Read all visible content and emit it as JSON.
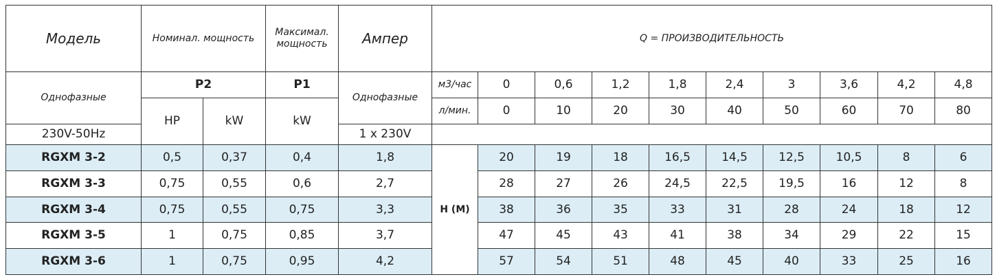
{
  "header": {
    "model": "Модель",
    "nominal_power": "Номинал. мощность",
    "max_power": "Максимал. мощность",
    "ampere": "Ампер",
    "q_title": "Q = ПРОИЗВОДИТЕЛЬНОСТЬ",
    "phase": "Однофазные",
    "p2": "P2",
    "p1": "P1",
    "ampere_phase": "Однофазные",
    "flow_unit_m3": "м3/час",
    "flow_unit_l": "л/мин.",
    "hp": "HP",
    "kw_p2": "kW",
    "kw_p1": "kW",
    "voltage": "230V-50Hz",
    "ampere_voltage": "1 x 230V",
    "head_label": "H (M)"
  },
  "flow_m3h": [
    "0",
    "0,6",
    "1,2",
    "1,8",
    "2,4",
    "3",
    "3,6",
    "4,2",
    "4,8"
  ],
  "flow_lmin": [
    "0",
    "10",
    "20",
    "30",
    "40",
    "50",
    "60",
    "70",
    "80"
  ],
  "table": {
    "rows": [
      {
        "model": "RGXM 3-2",
        "hp": "0,5",
        "kw": "0,37",
        "p1_kw": "0,4",
        "ampere": "1,8",
        "head": [
          "20",
          "19",
          "18",
          "16,5",
          "14,5",
          "12,5",
          "10,5",
          "8",
          "6"
        ]
      },
      {
        "model": "RGXM 3-3",
        "hp": "0,75",
        "kw": "0,55",
        "p1_kw": "0,6",
        "ampere": "2,7",
        "head": [
          "28",
          "27",
          "26",
          "24,5",
          "22,5",
          "19,5",
          "16",
          "12",
          "8"
        ]
      },
      {
        "model": "RGXM 3-4",
        "hp": "0,75",
        "kw": "0,55",
        "p1_kw": "0,75",
        "ampere": "3,3",
        "head": [
          "38",
          "36",
          "35",
          "33",
          "31",
          "28",
          "24",
          "18",
          "12"
        ]
      },
      {
        "model": "RGXM 3-5",
        "hp": "1",
        "kw": "0,75",
        "p1_kw": "0,85",
        "ampere": "3,7",
        "head": [
          "47",
          "45",
          "43",
          "41",
          "38",
          "34",
          "29",
          "22",
          "15"
        ]
      },
      {
        "model": "RGXM 3-6",
        "hp": "1",
        "kw": "0,75",
        "p1_kw": "0,95",
        "ampere": "4,2",
        "head": [
          "57",
          "54",
          "51",
          "48",
          "45",
          "40",
          "33",
          "25",
          "16"
        ]
      }
    ]
  }
}
